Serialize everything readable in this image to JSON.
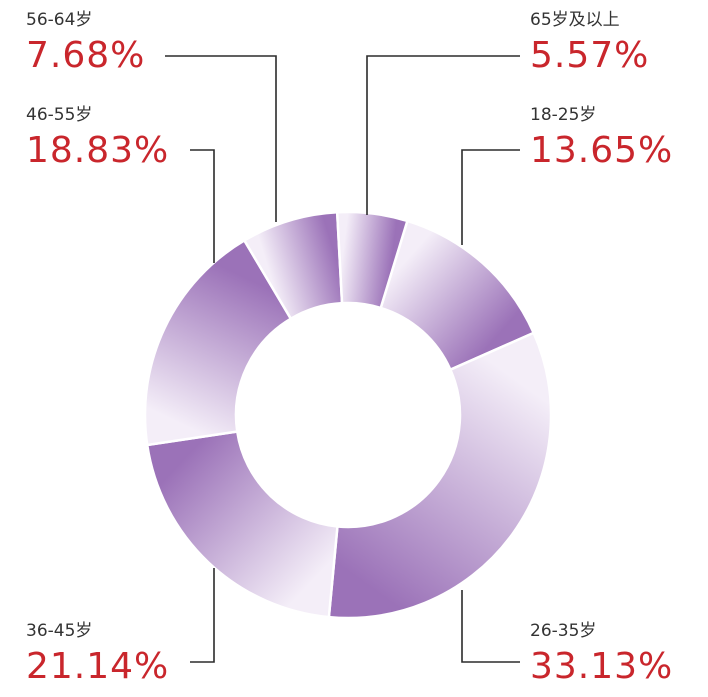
{
  "chart_data": {
    "type": "pie",
    "title": "",
    "donut": true,
    "categories": [
      "18-25岁",
      "26-35岁",
      "36-45岁",
      "46-55岁",
      "56-64岁",
      "65岁及以上"
    ],
    "values": [
      13.65,
      33.13,
      21.14,
      18.83,
      7.68,
      5.57
    ],
    "value_labels": [
      "13.65%",
      "33.13%",
      "21.14%",
      "18.83%",
      "7.68%",
      "5.57%"
    ],
    "unit": "%",
    "legend": "none",
    "colors": {
      "slice_light": "#f4eef8",
      "slice_dark": "#9b72b8",
      "percent_text": "#c9262c",
      "label_text": "#333333",
      "leader_line": "#2b2b2b"
    }
  }
}
